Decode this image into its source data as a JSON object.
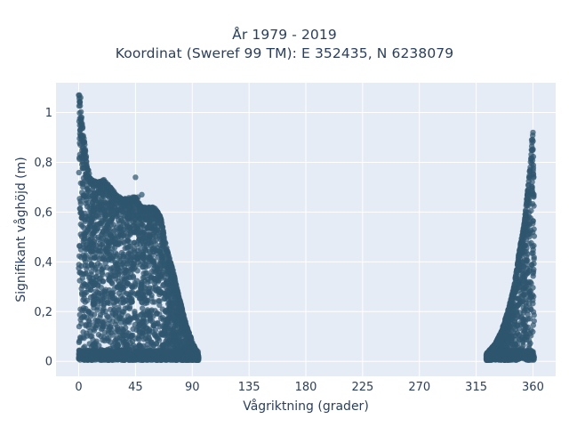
{
  "chart_data": {
    "type": "scatter",
    "title": "År 1979 - 2019",
    "subtitle": "Koordinat (Sweref 99 TM): E 352435, N 6238079",
    "xlabel": "Vågriktning (grader)",
    "ylabel": "Signifikant våghöjd (m)",
    "xlim": [
      -18,
      378
    ],
    "ylim": [
      -0.06,
      1.12
    ],
    "x_ticks": [
      0,
      45,
      90,
      135,
      180,
      225,
      270,
      315,
      360
    ],
    "x_tick_labels": [
      "0",
      "45",
      "90",
      "135",
      "180",
      "225",
      "270",
      "315",
      "360"
    ],
    "y_ticks": [
      0,
      0.2,
      0.4,
      0.6,
      0.8,
      1
    ],
    "y_tick_labels": [
      "0",
      "0,2",
      "0,4",
      "0,6",
      "0,8",
      "1"
    ],
    "grid": true,
    "colors": {
      "marker": "#2f566f",
      "plot_background": "#e5ecf6",
      "grid": "#ffffff",
      "text": "#2a3f5f"
    },
    "series": [
      {
        "clusters": [
          {
            "x_range": [
              0,
              95
            ],
            "envelope": [
              [
                0,
                1.07
              ],
              [
                1,
                1.05
              ],
              [
                3,
                0.95
              ],
              [
                5,
                0.86
              ],
              [
                7,
                0.78
              ],
              [
                10,
                0.73
              ],
              [
                15,
                0.72
              ],
              [
                20,
                0.73
              ],
              [
                25,
                0.7
              ],
              [
                30,
                0.67
              ],
              [
                35,
                0.65
              ],
              [
                40,
                0.66
              ],
              [
                45,
                0.66
              ],
              [
                50,
                0.62
              ],
              [
                55,
                0.62
              ],
              [
                60,
                0.62
              ],
              [
                65,
                0.58
              ],
              [
                70,
                0.45
              ],
              [
                75,
                0.36
              ],
              [
                80,
                0.25
              ],
              [
                85,
                0.15
              ],
              [
                90,
                0.08
              ],
              [
                95,
                0.02
              ]
            ]
          },
          {
            "x_range": [
              323,
              361
            ],
            "envelope": [
              [
                323,
                0.03
              ],
              [
                330,
                0.07
              ],
              [
                335,
                0.12
              ],
              [
                340,
                0.2
              ],
              [
                345,
                0.3
              ],
              [
                350,
                0.47
              ],
              [
                353,
                0.55
              ],
              [
                355,
                0.65
              ],
              [
                357,
                0.75
              ],
              [
                359,
                0.86
              ],
              [
                360,
                0.92
              ],
              [
                361,
                0.6
              ]
            ]
          }
        ],
        "outliers": [
          {
            "x": 0.5,
            "y": 1.07
          },
          {
            "x": 1.5,
            "y": 1.06
          },
          {
            "x": 20,
            "y": 0.73
          },
          {
            "x": 35,
            "y": 0.65
          },
          {
            "x": 45,
            "y": 0.74
          },
          {
            "x": 47,
            "y": 0.66
          },
          {
            "x": 50,
            "y": 0.67
          },
          {
            "x": 360,
            "y": 0.92
          },
          {
            "x": 359,
            "y": 0.89
          }
        ]
      }
    ]
  }
}
